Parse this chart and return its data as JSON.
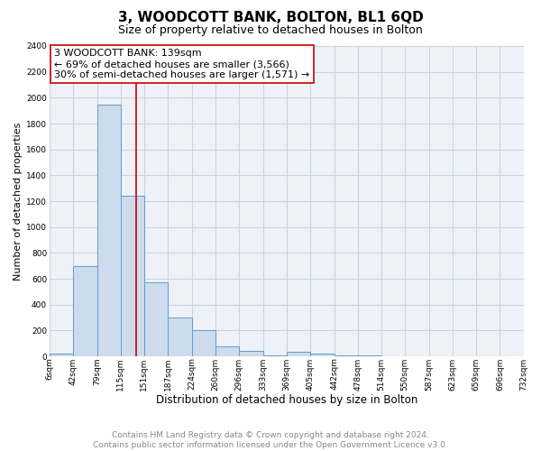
{
  "title": "3, WOODCOTT BANK, BOLTON, BL1 6QD",
  "subtitle": "Size of property relative to detached houses in Bolton",
  "xlabel": "Distribution of detached houses by size in Bolton",
  "ylabel": "Number of detached properties",
  "bin_edges": [
    6,
    42,
    79,
    115,
    151,
    187,
    224,
    260,
    296,
    333,
    369,
    405,
    442,
    478,
    514,
    550,
    587,
    623,
    659,
    696,
    732
  ],
  "bar_heights": [
    20,
    700,
    1950,
    1240,
    570,
    300,
    200,
    80,
    40,
    5,
    35,
    20,
    10,
    5,
    2,
    2,
    1,
    1,
    1,
    2
  ],
  "bar_color": "#ccdcec",
  "bar_edgecolor": "#6699cc",
  "bar_linewidth": 0.7,
  "grid_color": "#c8d4e0",
  "plot_bg_color": "#eef2f8",
  "fig_bg_color": "#ffffff",
  "vline_x": 139,
  "vline_color": "#cc0000",
  "vline_linewidth": 1.2,
  "annotation_text": "3 WOODCOTT BANK: 139sqm\n← 69% of detached houses are smaller (3,566)\n30% of semi-detached houses are larger (1,571) →",
  "annotation_box_edgecolor": "#cc0000",
  "annotation_box_facecolor": "#ffffff",
  "ylim": [
    0,
    2400
  ],
  "yticks": [
    0,
    200,
    400,
    600,
    800,
    1000,
    1200,
    1400,
    1600,
    1800,
    2000,
    2200,
    2400
  ],
  "tick_labels": [
    "6sqm",
    "42sqm",
    "79sqm",
    "115sqm",
    "151sqm",
    "187sqm",
    "224sqm",
    "260sqm",
    "296sqm",
    "333sqm",
    "369sqm",
    "405sqm",
    "442sqm",
    "478sqm",
    "514sqm",
    "550sqm",
    "587sqm",
    "623sqm",
    "659sqm",
    "696sqm",
    "732sqm"
  ],
  "footer_text": "Contains HM Land Registry data © Crown copyright and database right 2024.\nContains public sector information licensed under the Open Government Licence v3.0.",
  "title_fontsize": 11,
  "subtitle_fontsize": 9,
  "xlabel_fontsize": 8.5,
  "ylabel_fontsize": 8,
  "tick_fontsize": 6.5,
  "annotation_fontsize": 8,
  "footer_fontsize": 6.5
}
